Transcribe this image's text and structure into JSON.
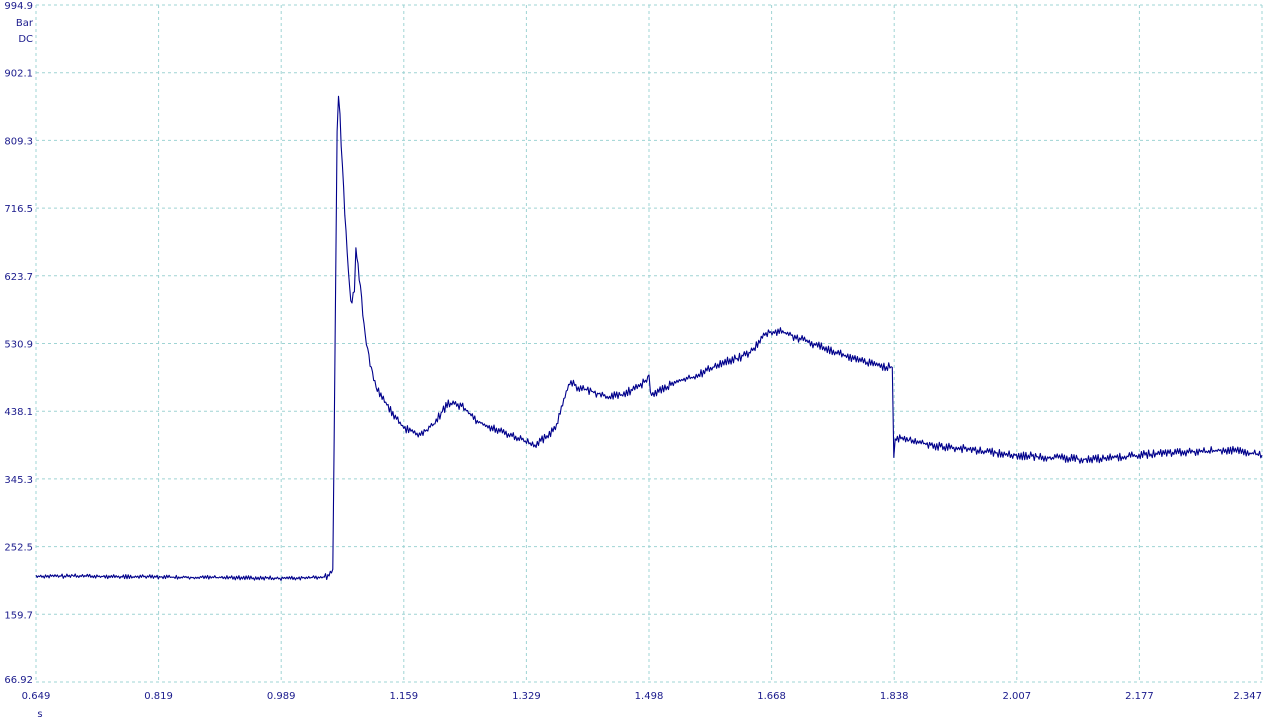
{
  "chart_data": {
    "type": "line",
    "title": "",
    "ylabel_unit": "Bar",
    "coupling": "DC",
    "xlabel_unit": "s",
    "grid": true,
    "colors": {
      "trace": "#00008b",
      "grid": "#9fd4d4",
      "text": "#1a1a8c"
    },
    "xlim": [
      0.649,
      2.347
    ],
    "ylim": [
      66.92,
      994.9
    ],
    "x_ticks": [
      "0.649",
      "0.819",
      "0.989",
      "1.159",
      "1.329",
      "1.498",
      "1.668",
      "1.838",
      "2.007",
      "2.177",
      "2.347"
    ],
    "y_ticks": [
      "994.9",
      "902.1",
      "809.3",
      "716.5",
      "623.7",
      "530.9",
      "438.1",
      "345.3",
      "252.5",
      "159.7",
      "66.92"
    ],
    "series": [
      {
        "x": [
          0.649,
          0.7,
          0.8,
          0.9,
          1.0,
          1.05,
          1.06,
          1.062,
          1.066,
          1.068,
          1.07,
          1.075,
          1.08,
          1.085,
          1.09,
          1.092,
          1.095,
          1.1,
          1.105,
          1.11,
          1.115,
          1.12,
          1.13,
          1.14,
          1.15,
          1.16,
          1.18,
          1.2,
          1.22,
          1.24,
          1.26,
          1.28,
          1.3,
          1.32,
          1.34,
          1.36,
          1.37,
          1.38,
          1.39,
          1.4,
          1.42,
          1.44,
          1.46,
          1.48,
          1.498,
          1.5,
          1.52,
          1.54,
          1.56,
          1.58,
          1.6,
          1.62,
          1.64,
          1.66,
          1.68,
          1.7,
          1.72,
          1.74,
          1.76,
          1.78,
          1.8,
          1.82,
          1.835,
          1.837,
          1.839,
          1.842,
          1.86,
          1.9,
          1.95,
          2.0,
          2.05,
          2.1,
          2.15,
          2.2,
          2.25,
          2.3,
          2.347
        ],
        "values": [
          212,
          212,
          211,
          210,
          209,
          211,
          220,
          400,
          820,
          866,
          840,
          740,
          655,
          585,
          600,
          660,
          640,
          590,
          540,
          510,
          490,
          470,
          455,
          440,
          425,
          415,
          405,
          420,
          450,
          445,
          425,
          415,
          408,
          400,
          392,
          405,
          420,
          455,
          480,
          470,
          465,
          458,
          460,
          470,
          482,
          460,
          470,
          480,
          485,
          495,
          505,
          510,
          520,
          545,
          548,
          540,
          532,
          526,
          518,
          510,
          505,
          500,
          498,
          370,
          400,
          402,
          398,
          390,
          385,
          378,
          375,
          372,
          375,
          380,
          382,
          385,
          378
        ]
      }
    ]
  }
}
